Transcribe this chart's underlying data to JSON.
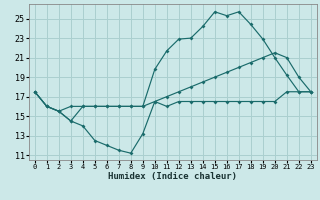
{
  "xlabel": "Humidex (Indice chaleur)",
  "bg_color": "#cce8e8",
  "line_color": "#1a6b6b",
  "grid_color": "#aacfcf",
  "xlim": [
    -0.5,
    23.5
  ],
  "ylim": [
    10.5,
    26.5
  ],
  "xticks": [
    0,
    1,
    2,
    3,
    4,
    5,
    6,
    7,
    8,
    9,
    10,
    11,
    12,
    13,
    14,
    15,
    16,
    17,
    18,
    19,
    20,
    21,
    22,
    23
  ],
  "yticks": [
    11,
    13,
    15,
    17,
    19,
    21,
    23,
    25
  ],
  "line1_x": [
    0,
    1,
    2,
    3,
    4,
    5,
    6,
    7,
    8,
    9,
    10,
    11,
    12,
    13,
    14,
    15,
    16,
    17,
    18,
    19,
    20,
    21,
    22,
    23
  ],
  "line1_y": [
    17.5,
    16.0,
    15.5,
    14.5,
    14.0,
    12.5,
    12.0,
    11.5,
    11.2,
    13.2,
    16.5,
    16.0,
    16.5,
    16.5,
    16.5,
    16.5,
    16.5,
    16.5,
    16.5,
    16.5,
    16.5,
    17.5,
    17.5,
    17.5
  ],
  "line2_x": [
    0,
    1,
    2,
    3,
    4,
    5,
    6,
    7,
    8,
    9,
    10,
    11,
    12,
    13,
    14,
    15,
    16,
    17,
    18,
    19,
    20,
    21,
    22,
    23
  ],
  "line2_y": [
    17.5,
    16.0,
    15.5,
    16.0,
    16.0,
    16.0,
    16.0,
    16.0,
    16.0,
    16.0,
    16.5,
    17.0,
    17.5,
    18.0,
    18.5,
    19.0,
    19.5,
    20.0,
    20.5,
    21.0,
    21.5,
    21.0,
    19.0,
    17.5
  ],
  "line3_x": [
    0,
    1,
    2,
    3,
    4,
    5,
    6,
    7,
    8,
    9,
    10,
    11,
    12,
    13,
    14,
    15,
    16,
    17,
    18,
    19,
    20,
    21,
    22,
    23
  ],
  "line3_y": [
    17.5,
    16.0,
    15.5,
    14.5,
    16.0,
    16.0,
    16.0,
    16.0,
    16.0,
    16.0,
    19.8,
    21.7,
    22.9,
    23.0,
    24.2,
    25.7,
    25.3,
    25.7,
    24.4,
    22.9,
    21.0,
    19.2,
    17.5,
    17.5
  ]
}
